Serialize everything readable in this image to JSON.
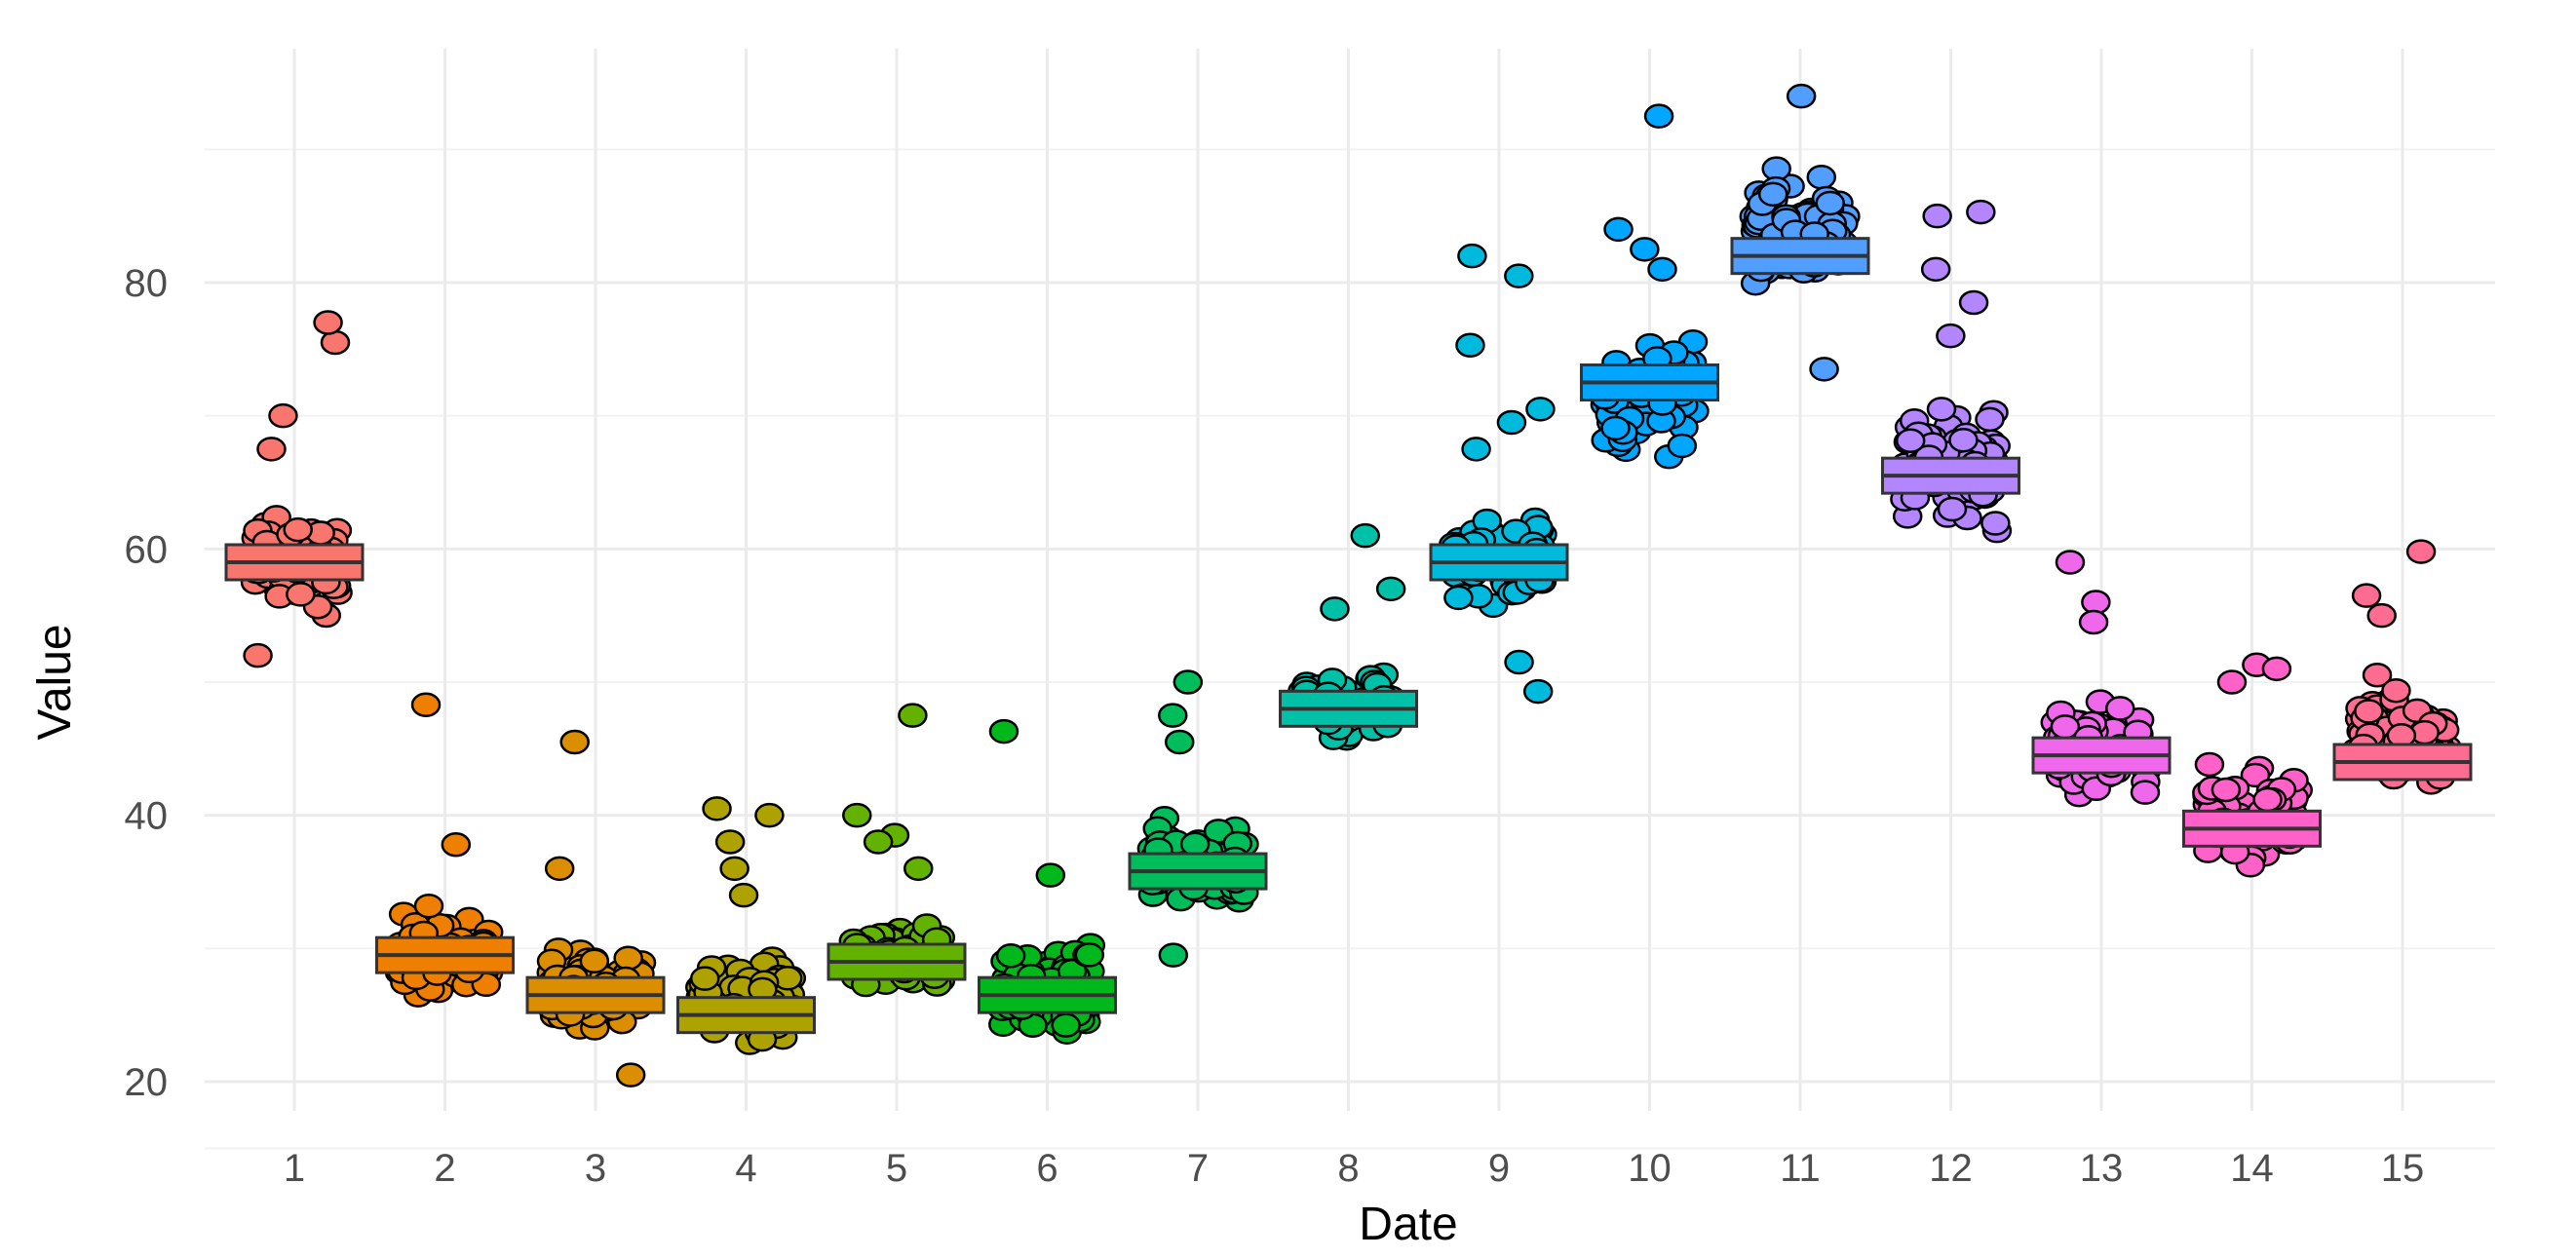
{
  "chart_data": {
    "type": "scatter",
    "title": "",
    "xlabel": "Date",
    "ylabel": "Value",
    "x_ticks": [
      "1",
      "2",
      "3",
      "4",
      "5",
      "6",
      "7",
      "8",
      "9",
      "10",
      "11",
      "12",
      "13",
      "14",
      "15"
    ],
    "y_ticks": [
      20,
      40,
      60,
      80
    ],
    "ylim": [
      15,
      96
    ],
    "grid": true,
    "legend": "none",
    "markers": {
      "points": "circle",
      "mean": "crossbox"
    },
    "series": [
      {
        "x": 1,
        "color": "#F8766D",
        "mean": 59.0,
        "core_min": 52,
        "core_max": 66,
        "outliers": [
          75.5,
          77.0,
          70.0,
          67.5,
          52.0
        ]
      },
      {
        "x": 2,
        "color": "#EF7F00",
        "mean": 29.5,
        "core_min": 24,
        "core_max": 35,
        "outliers": [
          48.3,
          37.8
        ]
      },
      {
        "x": 3,
        "color": "#DB8E00",
        "mean": 26.5,
        "core_min": 21,
        "core_max": 33,
        "outliers": [
          45.5,
          36.0,
          20.5
        ]
      },
      {
        "x": 4,
        "color": "#AEA200",
        "mean": 25.0,
        "core_min": 20,
        "core_max": 32,
        "outliers": [
          40.5,
          40.0,
          38.0,
          36.0,
          34.0
        ]
      },
      {
        "x": 5,
        "color": "#64B200",
        "mean": 29.0,
        "core_min": 25,
        "core_max": 34,
        "outliers": [
          47.5,
          40.0,
          38.5,
          38.0,
          36.0
        ]
      },
      {
        "x": 6,
        "color": "#00B81B",
        "mean": 26.5,
        "core_min": 21,
        "core_max": 33,
        "outliers": [
          46.3,
          35.5
        ]
      },
      {
        "x": 7,
        "color": "#00BD5C",
        "mean": 35.8,
        "core_min": 31,
        "core_max": 42,
        "outliers": [
          50.0,
          47.5,
          45.5,
          29.5
        ]
      },
      {
        "x": 8,
        "color": "#00C1A7",
        "mean": 48.0,
        "core_min": 43.5,
        "core_max": 53,
        "outliers": [
          61.0,
          57.0,
          55.5
        ]
      },
      {
        "x": 9,
        "color": "#00BADE",
        "mean": 59.0,
        "core_min": 53,
        "core_max": 66,
        "outliers": [
          82.0,
          80.5,
          75.3,
          70.5,
          69.5,
          67.5,
          51.5,
          49.3
        ]
      },
      {
        "x": 10,
        "color": "#00A6FF",
        "mean": 72.5,
        "core_min": 64,
        "core_max": 79,
        "outliers": [
          92.5,
          84.0,
          82.5,
          81.0
        ]
      },
      {
        "x": 11,
        "color": "#529EFF",
        "mean": 82.0,
        "core_min": 76,
        "core_max": 92,
        "outliers": [
          94.0,
          73.5
        ]
      },
      {
        "x": 12,
        "color": "#B385FF",
        "mean": 65.5,
        "core_min": 58,
        "core_max": 74,
        "outliers": [
          85.3,
          85.0,
          81.0,
          78.5,
          76.0
        ]
      },
      {
        "x": 13,
        "color": "#EF67EB",
        "mean": 44.5,
        "core_min": 39,
        "core_max": 51,
        "outliers": [
          59.0,
          56.0,
          54.5
        ]
      },
      {
        "x": 14,
        "color": "#FF61C9",
        "mean": 39.0,
        "core_min": 33,
        "core_max": 47,
        "outliers": [
          51.3,
          51.0,
          50.0
        ]
      },
      {
        "x": 15,
        "color": "#FF6C91",
        "mean": 44.0,
        "core_min": 39,
        "core_max": 53,
        "outliers": [
          59.8,
          56.5,
          55.0
        ]
      }
    ]
  }
}
